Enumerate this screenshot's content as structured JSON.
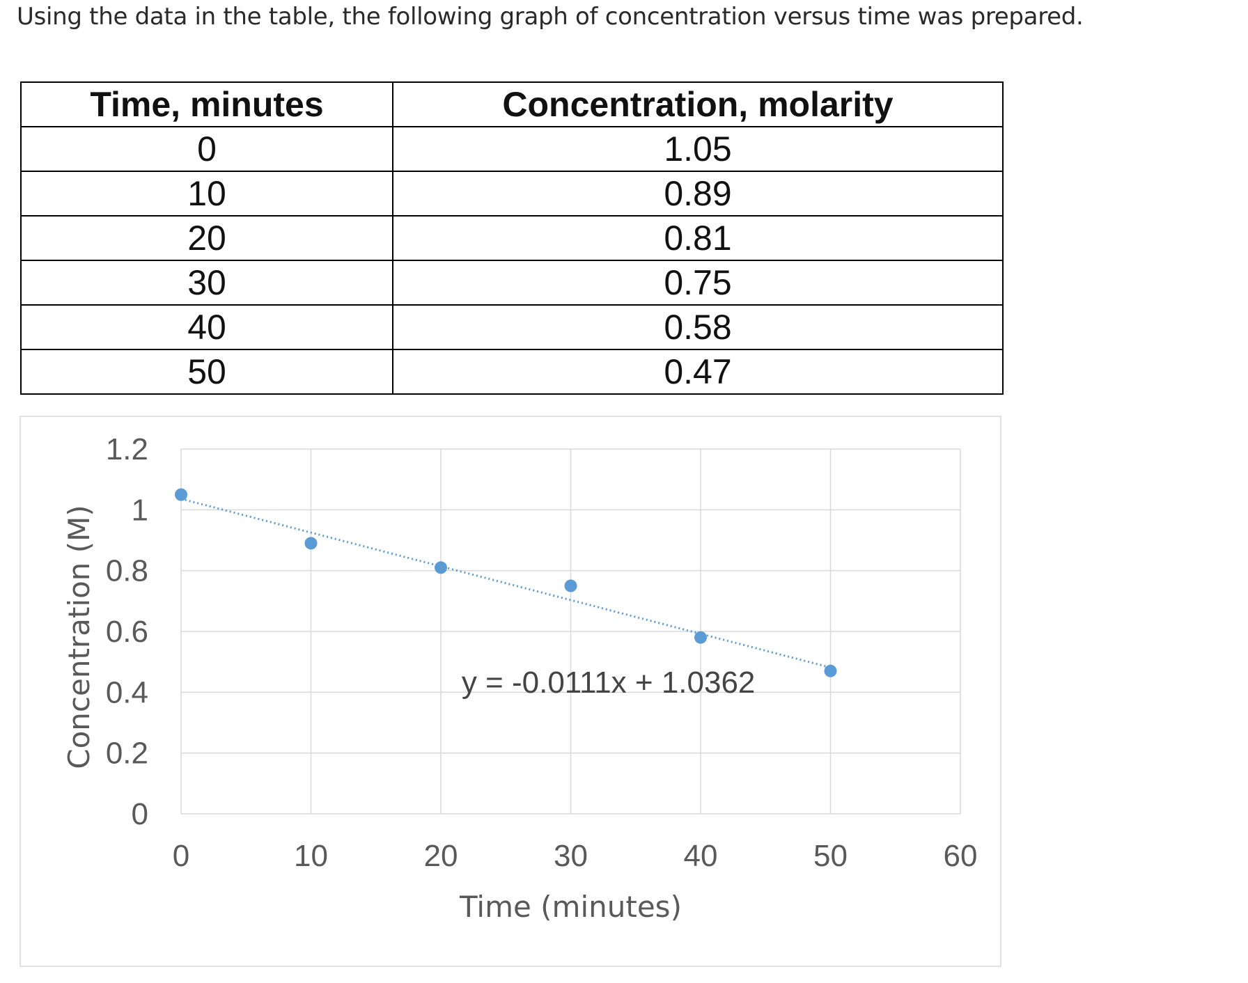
{
  "intro_text": "Using the data in the table, the following graph of concentration versus time was prepared.",
  "table": {
    "headers": [
      "Time, minutes",
      "Concentration, molarity"
    ],
    "rows": [
      [
        "0",
        "1.05"
      ],
      [
        "10",
        "0.89"
      ],
      [
        "20",
        "0.81"
      ],
      [
        "30",
        "0.75"
      ],
      [
        "40",
        "0.58"
      ],
      [
        "50",
        "0.47"
      ]
    ]
  },
  "chart_data": {
    "type": "scatter",
    "title": "",
    "xlabel": "Time (minutes)",
    "ylabel": "Concentration (M)",
    "xlim": [
      0,
      60
    ],
    "ylim": [
      0,
      1.2
    ],
    "x_ticks": [
      0,
      10,
      20,
      30,
      40,
      50,
      60
    ],
    "y_ticks": [
      0,
      0.2,
      0.4,
      0.6,
      0.8,
      1,
      1.2
    ],
    "x_tick_labels": [
      "0",
      "10",
      "20",
      "30",
      "40",
      "50",
      "60"
    ],
    "y_tick_labels": [
      "0",
      "0.2",
      "0.4",
      "0.6",
      "0.8",
      "1",
      "1.2"
    ],
    "grid": true,
    "series": [
      {
        "x": [
          0,
          10,
          20,
          30,
          40,
          50
        ],
        "y": [
          1.05,
          0.89,
          0.81,
          0.75,
          0.58,
          0.47
        ],
        "color": "#5b9bd5"
      }
    ],
    "trendline": {
      "kind": "linear",
      "slope": -0.0111,
      "intercept": 1.0362,
      "style": "dotted",
      "color": "#5b9bd5",
      "equation_label": "y = -0.0111x + 1.0362"
    }
  }
}
